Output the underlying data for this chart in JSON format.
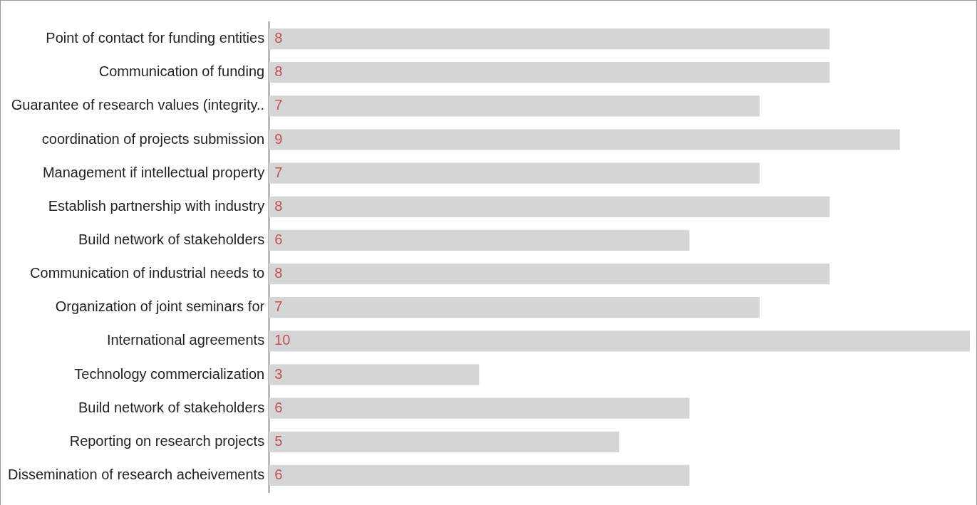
{
  "chart_data": {
    "type": "bar",
    "orientation": "horizontal",
    "data_labels": true,
    "legend": false,
    "categories": [
      "Point of contact for funding entities",
      "Communication of funding",
      "Guarantee of research values (integrity..",
      "coordination of projects submission",
      "Management if intellectual property",
      "Establish partnership with industry",
      "Build network of stakeholders",
      "Communication of industrial needs to",
      "Organization of joint seminars for",
      "International agreements",
      "Technology commercialization",
      "Build network of stakeholders",
      "Reporting on research projects",
      "Dissemination of research acheivements"
    ],
    "series": [
      {
        "color": "#d4d5d7",
        "values": [
          8,
          8,
          7,
          9,
          7,
          8,
          6,
          8,
          7,
          10,
          3,
          6,
          5,
          6
        ]
      }
    ]
  }
}
